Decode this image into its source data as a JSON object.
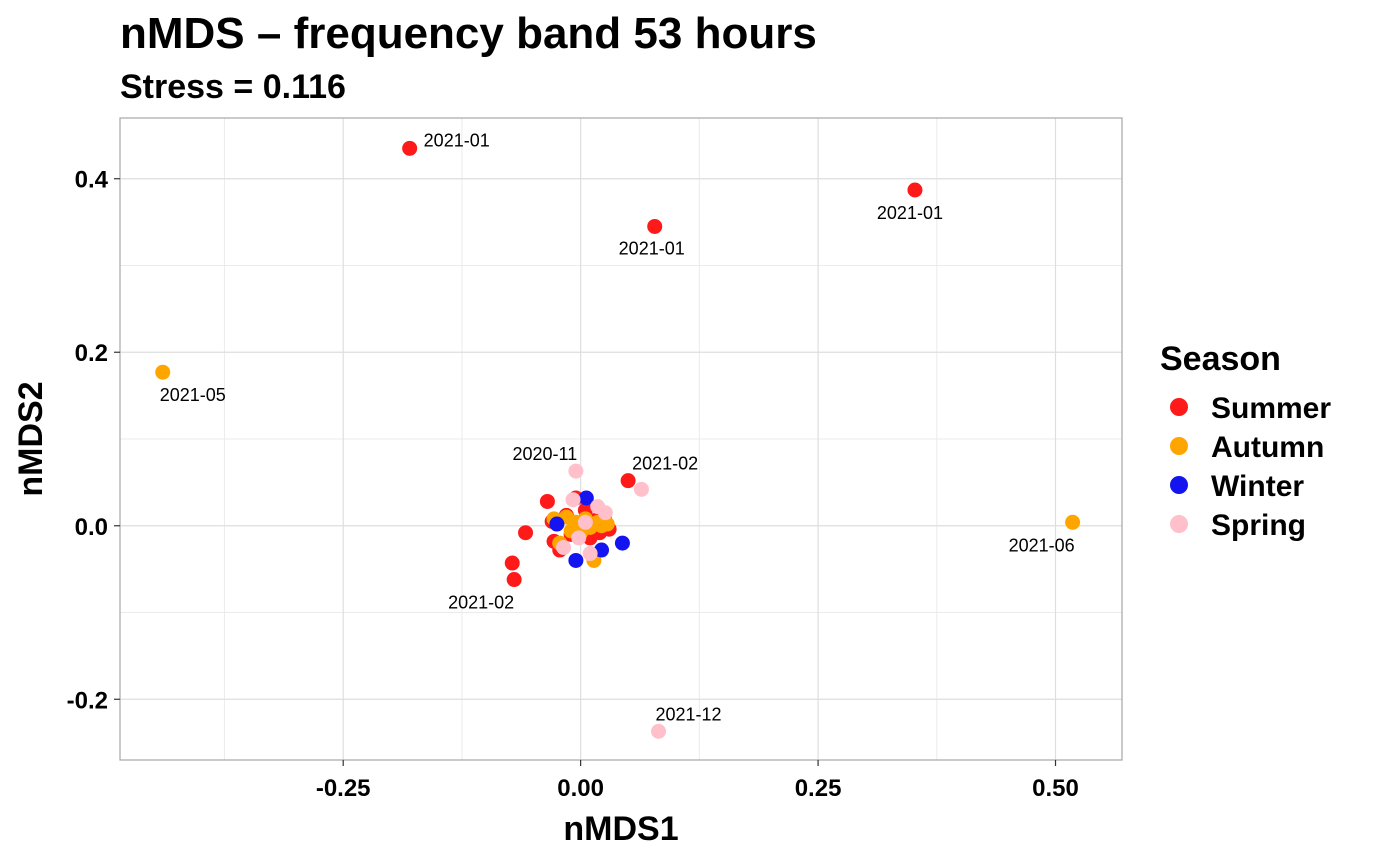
{
  "chart_data": {
    "type": "scatter",
    "title": "nMDS – frequency band 53 hours",
    "subtitle": "Stress = 0.116",
    "xlabel": "nMDS1",
    "ylabel": "nMDS2",
    "xlim": [
      -0.485,
      0.57
    ],
    "ylim": [
      -0.27,
      0.47
    ],
    "xticks": [
      -0.25,
      0.0,
      0.25,
      0.5
    ],
    "xtick_labels": [
      "-0.25",
      "0.00",
      "0.25",
      "0.50"
    ],
    "yticks": [
      -0.2,
      0.0,
      0.2,
      0.4
    ],
    "ytick_labels": [
      "-0.2",
      "0.0",
      "0.2",
      "0.4"
    ],
    "grid": true,
    "legend": {
      "title": "Season",
      "position": "right",
      "entries": [
        {
          "name": "Summer",
          "color": "#FF1A1A"
        },
        {
          "name": "Autumn",
          "color": "#FFA500"
        },
        {
          "name": "Winter",
          "color": "#1414F0"
        },
        {
          "name": "Spring",
          "color": "#FFC0CB"
        }
      ]
    },
    "series": [
      {
        "name": "Summer",
        "color": "#FF1A1A",
        "points": [
          {
            "x": -0.18,
            "y": 0.435,
            "label": "2021-01"
          },
          {
            "x": 0.078,
            "y": 0.345,
            "label": "2021-01"
          },
          {
            "x": 0.352,
            "y": 0.387,
            "label": "2021-01"
          },
          {
            "x": 0.05,
            "y": 0.052,
            "label": "2021-02"
          },
          {
            "x": -0.07,
            "y": -0.062,
            "label": "2021-02"
          },
          {
            "x": -0.072,
            "y": -0.043
          },
          {
            "x": -0.058,
            "y": -0.008
          },
          {
            "x": -0.035,
            "y": 0.028
          },
          {
            "x": -0.03,
            "y": 0.005
          },
          {
            "x": -0.028,
            "y": -0.018
          },
          {
            "x": -0.022,
            "y": -0.028
          },
          {
            "x": -0.015,
            "y": 0.012
          },
          {
            "x": -0.01,
            "y": -0.01
          },
          {
            "x": -0.005,
            "y": 0.032
          },
          {
            "x": 0.0,
            "y": -0.004
          },
          {
            "x": 0.005,
            "y": 0.018
          },
          {
            "x": 0.01,
            "y": -0.014
          },
          {
            "x": 0.015,
            "y": 0.006
          },
          {
            "x": 0.02,
            "y": -0.008
          },
          {
            "x": 0.025,
            "y": 0.01
          },
          {
            "x": 0.03,
            "y": -0.004
          }
        ]
      },
      {
        "name": "Autumn",
        "color": "#FFA500",
        "points": [
          {
            "x": -0.44,
            "y": 0.177,
            "label": "2021-05"
          },
          {
            "x": 0.518,
            "y": 0.004,
            "label": "2021-06"
          },
          {
            "x": -0.028,
            "y": 0.008
          },
          {
            "x": -0.022,
            "y": -0.02
          },
          {
            "x": -0.015,
            "y": 0.01
          },
          {
            "x": -0.01,
            "y": -0.006
          },
          {
            "x": -0.005,
            "y": 0.004
          },
          {
            "x": 0.0,
            "y": -0.008
          },
          {
            "x": 0.005,
            "y": 0.008
          },
          {
            "x": 0.01,
            "y": -0.002
          },
          {
            "x": 0.014,
            "y": -0.04
          },
          {
            "x": 0.018,
            "y": 0.004
          },
          {
            "x": 0.022,
            "y": 0.0
          },
          {
            "x": 0.028,
            "y": 0.002
          }
        ]
      },
      {
        "name": "Winter",
        "color": "#1414F0",
        "points": [
          {
            "x": 0.006,
            "y": 0.032
          },
          {
            "x": 0.044,
            "y": -0.02
          },
          {
            "x": -0.005,
            "y": -0.04
          },
          {
            "x": -0.025,
            "y": 0.002
          },
          {
            "x": 0.022,
            "y": -0.028
          }
        ]
      },
      {
        "name": "Spring",
        "color": "#FFC0CB",
        "points": [
          {
            "x": -0.005,
            "y": 0.063,
            "label": "2020-11"
          },
          {
            "x": 0.082,
            "y": -0.237,
            "label": "2021-12"
          },
          {
            "x": 0.064,
            "y": 0.042
          },
          {
            "x": -0.008,
            "y": 0.03
          },
          {
            "x": 0.026,
            "y": 0.015
          },
          {
            "x": -0.018,
            "y": -0.025
          },
          {
            "x": 0.01,
            "y": -0.032
          },
          {
            "x": 0.018,
            "y": 0.022
          },
          {
            "x": -0.002,
            "y": -0.014
          },
          {
            "x": 0.005,
            "y": 0.004
          }
        ]
      }
    ]
  }
}
